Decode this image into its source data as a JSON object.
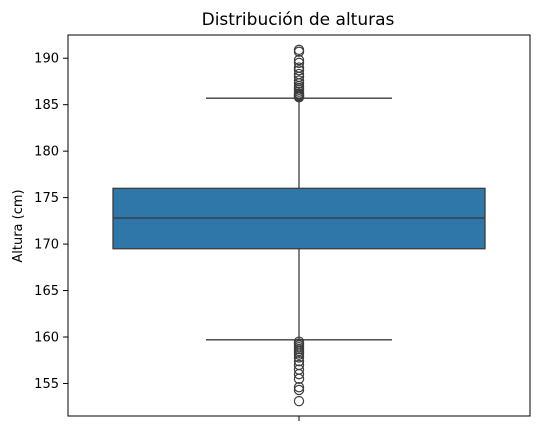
{
  "chart_data": {
    "type": "box",
    "title": "Distribución de alturas",
    "xlabel": "",
    "ylabel": "Altura (cm)",
    "ylim": [
      151.5,
      192.5
    ],
    "y_ticks": [
      155,
      160,
      165,
      170,
      175,
      180,
      185,
      190
    ],
    "grid": false,
    "box": {
      "q1": 169.5,
      "median": 172.8,
      "q3": 176.0,
      "whisker_low": 159.7,
      "whisker_high": 185.7
    },
    "outliers_high": [
      185.8,
      185.9,
      186.0,
      186.1,
      186.2,
      186.4,
      186.6,
      186.8,
      187.0,
      187.3,
      187.6,
      188.0,
      188.3,
      188.7,
      189.0,
      189.5,
      189.8,
      190.7,
      190.9
    ],
    "outliers_low": [
      159.5,
      159.3,
      159.1,
      158.9,
      158.7,
      158.5,
      158.3,
      158.1,
      157.8,
      157.4,
      157.0,
      156.5,
      156.0,
      155.5,
      154.6,
      154.3,
      153.1
    ],
    "colors": {
      "box_fill": "#2f76a9",
      "line": "#3d3d3d",
      "axis": "#000000"
    }
  }
}
